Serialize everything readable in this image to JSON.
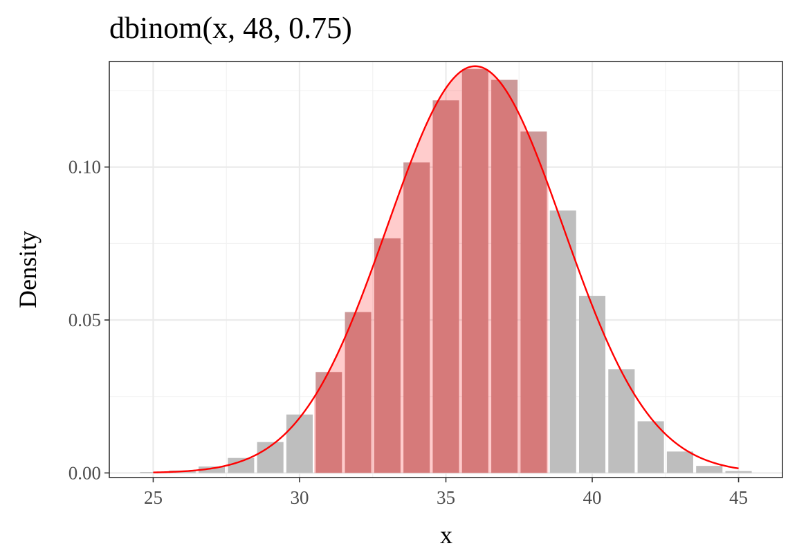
{
  "chart_data": {
    "type": "bar",
    "title": "dbinom(x, 48, 0.75)",
    "xlabel": "x",
    "ylabel": "Density",
    "xlim": [
      23.5,
      46.5
    ],
    "ylim": [
      -0.0015,
      0.1345
    ],
    "xticks": [
      25,
      30,
      35,
      40,
      45
    ],
    "yticks": [
      0.0,
      0.05,
      0.1
    ],
    "ytick_labels": [
      "0.00",
      "0.05",
      "0.10"
    ],
    "grid": true,
    "legend": "none",
    "bars": {
      "x": [
        25,
        26,
        27,
        28,
        29,
        30,
        31,
        32,
        33,
        34,
        35,
        36,
        37,
        38,
        39,
        40,
        41,
        42,
        43,
        44,
        45
      ],
      "values": [
        0.0003,
        0.0008,
        0.0021,
        0.0049,
        0.0101,
        0.0191,
        0.033,
        0.0526,
        0.0767,
        0.1015,
        0.1218,
        0.132,
        0.1285,
        0.1116,
        0.0858,
        0.0579,
        0.0339,
        0.0169,
        0.007,
        0.0023,
        0.0006
      ],
      "highlight_range": [
        31,
        38
      ],
      "color": "#bebebe",
      "highlight_color": "#cc9999"
    },
    "curve": {
      "type": "normal_density",
      "mean": 36,
      "sd": 3,
      "x_range": [
        25,
        45
      ],
      "color": "#ff0000",
      "shaded_range": [
        30.5,
        38.5
      ],
      "shade_color": "#ffcccc"
    }
  }
}
